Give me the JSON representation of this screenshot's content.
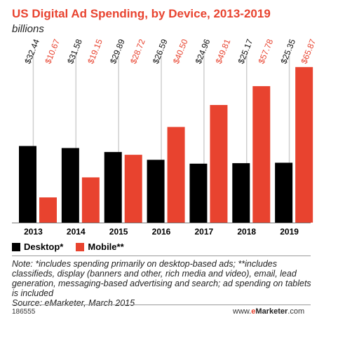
{
  "chart_data": {
    "type": "bar",
    "title": "US Digital Ad Spending, by Device, 2013-2019",
    "subtitle": "billions",
    "categories": [
      "2013",
      "2014",
      "2015",
      "2016",
      "2017",
      "2018",
      "2019"
    ],
    "series": [
      {
        "name": "Desktop*",
        "color": "#000000",
        "values": [
          32.44,
          31.58,
          29.89,
          26.59,
          24.96,
          25.17,
          25.35
        ],
        "labels": [
          "$32.44",
          "$31.58",
          "$29.89",
          "$26.59",
          "$24.96",
          "$25.17",
          "$25.35"
        ]
      },
      {
        "name": "Mobile**",
        "color": "#e8432f",
        "values": [
          10.67,
          19.15,
          28.72,
          40.5,
          49.81,
          57.78,
          65.87
        ],
        "labels": [
          "$10.67",
          "$19.15",
          "$28.72",
          "$40.50",
          "$49.81",
          "$57.78",
          "$65.87"
        ]
      }
    ],
    "ylim": [
      0,
      75
    ],
    "grid": false,
    "legend": "bottom-left"
  },
  "legend": {
    "desktop": "Desktop*",
    "mobile": "Mobile**"
  },
  "note": "Note: *includes spending primarily on desktop-based ads; **includes classifieds, display (banners and other, rich media and video), email, lead generation, messaging-based advertising and search; ad spending on tablets is included",
  "source": "Source: eMarketer, March 2015",
  "chart_id": "186555",
  "brand": {
    "prefix": "www.",
    "emphasis": "e",
    "name": "Marketer",
    "suffix": ".com"
  }
}
